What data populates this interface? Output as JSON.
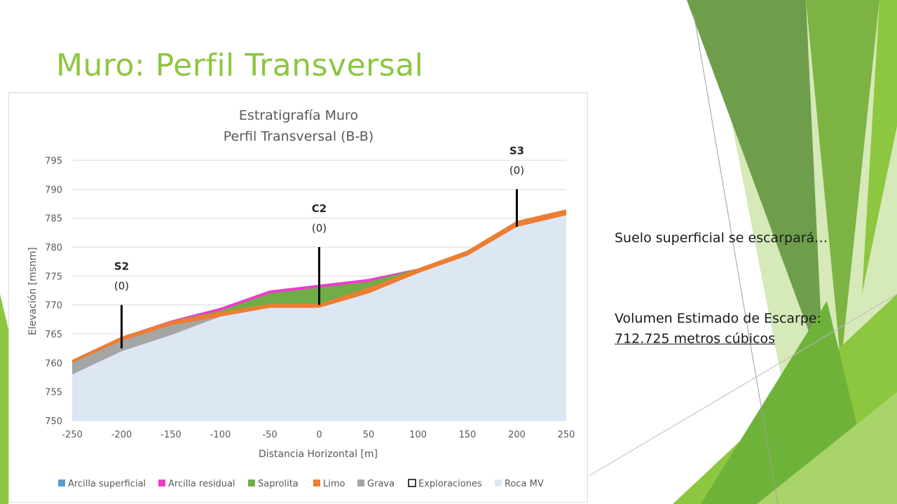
{
  "slide": {
    "title": "Muro: Perfil Transversal",
    "note": "Suelo superficial se escarpará…",
    "volume_label": "Volumen Estimado de Escarpe:",
    "volume_value": "712.725 metros cúbicos"
  },
  "colors": {
    "accent": "#8dc63f",
    "arcilla_superficial": "#5b9bd5",
    "arcilla_residual": "#f03ccc",
    "saprolita": "#70ad47",
    "limo": "#ed7d31",
    "grava": "#a5a5a5",
    "roca_mv": "#dde7f3"
  },
  "chart_data": {
    "type": "area",
    "title": "Estratigrafía Muro",
    "subtitle": "Perfil Transversal (B-B)",
    "xlabel": "Distancia Horizontal [m]",
    "ylabel": "Elevación [msnm]",
    "xlim": [
      -250,
      250
    ],
    "ylim": [
      750,
      795
    ],
    "xticks": [
      -250,
      -200,
      -150,
      -100,
      -50,
      0,
      50,
      100,
      150,
      200,
      250
    ],
    "yticks": [
      750,
      755,
      760,
      765,
      770,
      775,
      780,
      785,
      790,
      795
    ],
    "grid": true,
    "legend_position": "bottom",
    "x": [
      -250,
      -200,
      -150,
      -100,
      -50,
      0,
      50,
      100,
      150,
      200,
      250
    ],
    "series": [
      {
        "name": "Arcilla superficial",
        "color": "#5b9bd5",
        "top": [
          760.5,
          764.5,
          767.3,
          769.5,
          772.5,
          773.5,
          774.5,
          776.3,
          779.4,
          784.5,
          786.5
        ]
      },
      {
        "name": "Arcilla residual",
        "color": "#f03ccc",
        "top": [
          760.5,
          764.5,
          767.3,
          769.5,
          772.5,
          773.5,
          774.5,
          776.3,
          779.4,
          784.5,
          786.5
        ]
      },
      {
        "name": "Saprolita",
        "color": "#70ad47",
        "top": [
          760.5,
          764.5,
          767.2,
          769.0,
          772.0,
          773.0,
          774.0,
          776.3,
          779.4,
          784.5,
          786.5
        ]
      },
      {
        "name": "Limo",
        "color": "#ed7d31",
        "top": [
          760.5,
          764.5,
          767.2,
          768.8,
          770.2,
          770.2,
          773.0,
          776.3,
          779.4,
          784.5,
          786.5
        ]
      },
      {
        "name": "Grava",
        "color": "#a5a5a5",
        "top": [
          760.0,
          763.8,
          766.5,
          768.0,
          769.5,
          769.5,
          772.0,
          775.5,
          778.5,
          783.5,
          785.5
        ]
      },
      {
        "name": "Exploraciones",
        "color": "#000000",
        "top": []
      },
      {
        "name": "Roca MV",
        "color": "#dde7f3",
        "top": [
          758.0,
          762.0,
          764.8,
          768.0,
          769.5,
          769.5,
          772.0,
          775.5,
          778.5,
          783.5,
          785.5
        ]
      }
    ],
    "explorations": [
      {
        "name": "S2",
        "value": "(0)",
        "x": -200,
        "y_top": 770,
        "y_bottom": 762.5
      },
      {
        "name": "C2",
        "value": "(0)",
        "x": 0,
        "y_top": 780,
        "y_bottom": 770
      },
      {
        "name": "S3",
        "value": "(0)",
        "x": 200,
        "y_top": 790,
        "y_bottom": 783.5
      }
    ]
  }
}
